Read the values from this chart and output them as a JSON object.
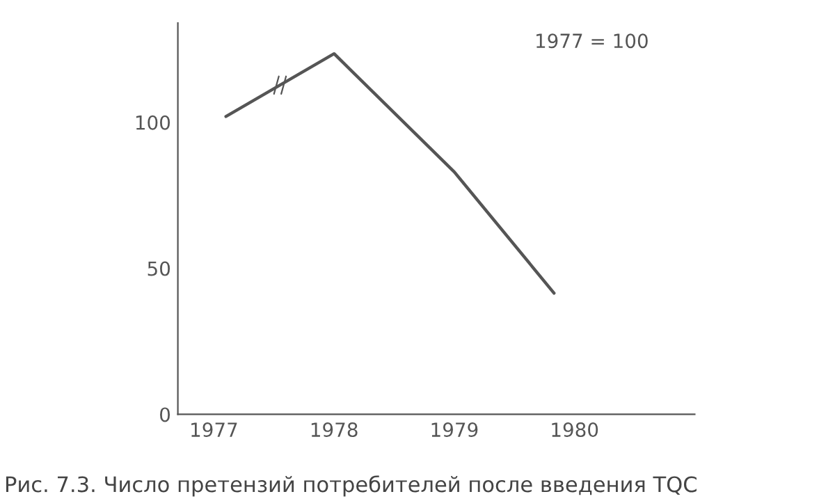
{
  "chart_data": {
    "type": "line",
    "title": "Рис. 7.3. Число претензий потребителей после введения TQC",
    "annotations": [
      "1977 = 100"
    ],
    "x": [
      1977.1,
      1978,
      1979,
      1979.83
    ],
    "series": [
      {
        "color": "#555555",
        "values": [
          102,
          123.5,
          83,
          41.5
        ]
      }
    ],
    "xlim": [
      1976.7,
      1981
    ],
    "xticks": [
      1977,
      1978,
      1979,
      1980
    ],
    "ylim": [
      0,
      134
    ],
    "yticks": [
      0,
      50,
      100
    ],
    "grid": false,
    "legend": false,
    "marker": "none",
    "line_style": "solid"
  }
}
